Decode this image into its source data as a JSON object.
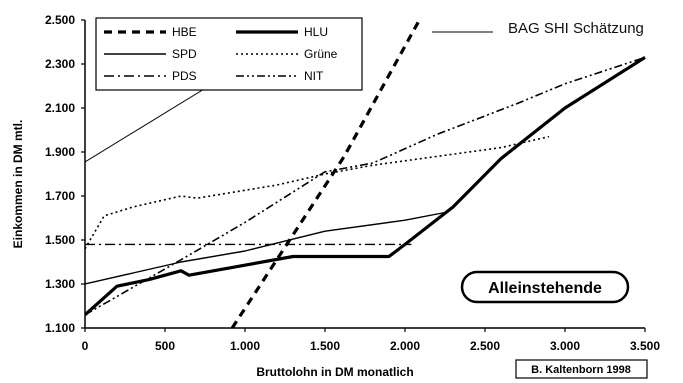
{
  "chart_data": {
    "type": "line",
    "title": "",
    "xlabel": "Bruttolohn in DM monatlich",
    "ylabel": "Einkommen in DM mtl.",
    "xlim": [
      0,
      3500
    ],
    "ylim": [
      1100,
      2500
    ],
    "x_ticks": [
      "0",
      "500",
      "1.000",
      "1.500",
      "2.000",
      "2.500",
      "3.000",
      "3.500"
    ],
    "y_ticks": [
      "1.100",
      "1.300",
      "1.500",
      "1.700",
      "1.900",
      "2.100",
      "2.300",
      "2.500"
    ],
    "grid": false,
    "legend": "top-left",
    "series": [
      {
        "name": "HBE",
        "style": "dashed-thick",
        "points": [
          [
            920,
            1100
          ],
          [
            1620,
            1880
          ],
          [
            2090,
            2500
          ]
        ]
      },
      {
        "name": "HLU",
        "style": "solid-thick",
        "points": [
          [
            0,
            1160
          ],
          [
            200,
            1290
          ],
          [
            400,
            1320
          ],
          [
            600,
            1360
          ],
          [
            650,
            1340
          ],
          [
            1300,
            1425
          ],
          [
            1900,
            1425
          ],
          [
            2000,
            1480
          ],
          [
            2300,
            1650
          ],
          [
            2600,
            1870
          ],
          [
            3000,
            2100
          ],
          [
            3500,
            2330
          ]
        ]
      },
      {
        "name": "SPD",
        "style": "solid",
        "points": [
          [
            0,
            1300
          ],
          [
            300,
            1350
          ],
          [
            600,
            1400
          ],
          [
            1000,
            1450
          ],
          [
            1500,
            1540
          ],
          [
            2000,
            1590
          ],
          [
            2250,
            1625
          ]
        ]
      },
      {
        "name": "Grüne",
        "style": "dotted",
        "points": [
          [
            0,
            1460
          ],
          [
            120,
            1610
          ],
          [
            300,
            1650
          ],
          [
            600,
            1700
          ],
          [
            700,
            1690
          ],
          [
            1200,
            1750
          ],
          [
            1500,
            1800
          ],
          [
            1800,
            1840
          ],
          [
            2200,
            1880
          ],
          [
            2600,
            1920
          ],
          [
            2900,
            1970
          ]
        ]
      },
      {
        "name": "PDS",
        "style": "dash-dot",
        "points": [
          [
            0,
            1480
          ],
          [
            2040,
            1480
          ]
        ]
      },
      {
        "name": "NIT",
        "style": "dash-dot-dot",
        "points": [
          [
            0,
            1160
          ],
          [
            600,
            1410
          ],
          [
            1000,
            1580
          ],
          [
            1500,
            1810
          ],
          [
            1800,
            1850
          ],
          [
            2200,
            1980
          ],
          [
            2700,
            2120
          ],
          [
            3000,
            2210
          ],
          [
            3500,
            2330
          ]
        ]
      },
      {
        "name": "BAG SHI Schätzung",
        "style": "thin",
        "points": [
          [
            0,
            1855
          ],
          [
            1000,
            2300
          ],
          [
            1320,
            2500
          ]
        ]
      }
    ],
    "annotations": {
      "badge": "Alleinstehende",
      "credit": "B. Kaltenborn 1998"
    }
  }
}
